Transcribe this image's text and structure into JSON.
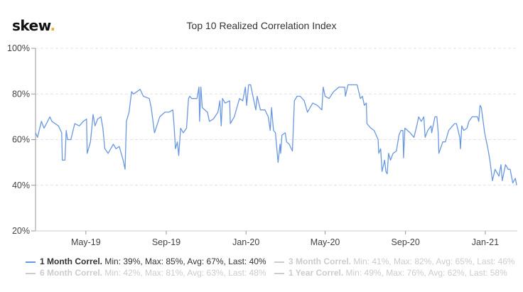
{
  "logo": {
    "text": "skew",
    "dot": "."
  },
  "chart_data": {
    "type": "line",
    "title": "Top 10 Realized Correlation Index",
    "xlabel": "",
    "ylabel": "",
    "xlim": [
      "2019-02-13",
      "2021-02-19"
    ],
    "ylim": [
      20,
      100
    ],
    "y_unit": "%",
    "y_ticks": [
      "20%",
      "40%",
      "60%",
      "80%",
      "100%"
    ],
    "y_tick_values": [
      20,
      40,
      60,
      80,
      100
    ],
    "x_ticks": [
      {
        "label": "May-19",
        "date": "2019-05-01"
      },
      {
        "label": "Sep-19",
        "date": "2019-09-01"
      },
      {
        "label": "Jan-20",
        "date": "2020-01-01"
      },
      {
        "label": "May-20",
        "date": "2020-05-01"
      },
      {
        "label": "Sep-20",
        "date": "2020-09-01"
      },
      {
        "label": "Jan-21",
        "date": "2021-01-01"
      }
    ],
    "grid": "horizontal dashed",
    "legend_placement": "bottom",
    "colors": {
      "series": "#6a98e0",
      "inactive": "#cccccc"
    },
    "series": [
      {
        "name": "1 Month Correl.",
        "visible": true,
        "stats": "Min: 39%, Max: 85%, Avg: 67%, Last: 40%",
        "points": [
          [
            "2019-02-13",
            63
          ],
          [
            "2019-02-16",
            61
          ],
          [
            "2019-02-22",
            68
          ],
          [
            "2019-02-26",
            65
          ],
          [
            "2019-03-07",
            70
          ],
          [
            "2019-03-10",
            68
          ],
          [
            "2019-03-20",
            66
          ],
          [
            "2019-03-25",
            63
          ],
          [
            "2019-03-26",
            51
          ],
          [
            "2019-03-30",
            51
          ],
          [
            "2019-04-01",
            64
          ],
          [
            "2019-04-03",
            60
          ],
          [
            "2019-04-08",
            60
          ],
          [
            "2019-04-14",
            67
          ],
          [
            "2019-04-21",
            66
          ],
          [
            "2019-04-27",
            68
          ],
          [
            "2019-05-02",
            69
          ],
          [
            "2019-05-03",
            54
          ],
          [
            "2019-05-08",
            59
          ],
          [
            "2019-05-12",
            71
          ],
          [
            "2019-05-15",
            66
          ],
          [
            "2019-05-19",
            69
          ],
          [
            "2019-05-24",
            70
          ],
          [
            "2019-05-27",
            65
          ],
          [
            "2019-05-30",
            56
          ],
          [
            "2019-06-04",
            54
          ],
          [
            "2019-06-12",
            58
          ],
          [
            "2019-06-16",
            56
          ],
          [
            "2019-06-21",
            57
          ],
          [
            "2019-06-27",
            51
          ],
          [
            "2019-06-30",
            47
          ],
          [
            "2019-07-02",
            68
          ],
          [
            "2019-07-06",
            72
          ],
          [
            "2019-07-10",
            81
          ],
          [
            "2019-07-13",
            80
          ],
          [
            "2019-07-23",
            82
          ],
          [
            "2019-07-28",
            79
          ],
          [
            "2019-08-06",
            78
          ],
          [
            "2019-08-09",
            74
          ],
          [
            "2019-08-14",
            63
          ],
          [
            "2019-08-22",
            70
          ],
          [
            "2019-08-30",
            72
          ],
          [
            "2019-09-05",
            72
          ],
          [
            "2019-09-11",
            73
          ],
          [
            "2019-09-13",
            66
          ],
          [
            "2019-09-15",
            56
          ],
          [
            "2019-09-18",
            59
          ],
          [
            "2019-09-20",
            53
          ],
          [
            "2019-09-23",
            65
          ],
          [
            "2019-09-27",
            63
          ],
          [
            "2019-10-02",
            65
          ],
          [
            "2019-10-05",
            78
          ],
          [
            "2019-10-07",
            79
          ],
          [
            "2019-10-10",
            78
          ],
          [
            "2019-10-18",
            78
          ],
          [
            "2019-10-21",
            83
          ],
          [
            "2019-10-22",
            68
          ],
          [
            "2019-10-24",
            83
          ],
          [
            "2019-10-26",
            74
          ],
          [
            "2019-11-03",
            72
          ],
          [
            "2019-11-06",
            68
          ],
          [
            "2019-11-12",
            69
          ],
          [
            "2019-11-19",
            72
          ],
          [
            "2019-11-22",
            77
          ],
          [
            "2019-11-24",
            66
          ],
          [
            "2019-11-26",
            78
          ],
          [
            "2019-11-30",
            76
          ],
          [
            "2019-12-07",
            77
          ],
          [
            "2019-12-08",
            67
          ],
          [
            "2019-12-14",
            70
          ],
          [
            "2019-12-22",
            78
          ],
          [
            "2019-12-27",
            77
          ],
          [
            "2019-12-31",
            83
          ],
          [
            "2020-01-02",
            75
          ],
          [
            "2020-01-05",
            84
          ],
          [
            "2020-01-08",
            84
          ],
          [
            "2020-01-13",
            77
          ],
          [
            "2020-01-16",
            73
          ],
          [
            "2020-01-18",
            79
          ],
          [
            "2020-01-23",
            73
          ],
          [
            "2020-01-30",
            73
          ],
          [
            "2020-02-04",
            70
          ],
          [
            "2020-02-07",
            64
          ],
          [
            "2020-02-09",
            74
          ],
          [
            "2020-02-12",
            64
          ],
          [
            "2020-02-15",
            63
          ],
          [
            "2020-02-19",
            50
          ],
          [
            "2020-02-22",
            58
          ],
          [
            "2020-02-23",
            54
          ],
          [
            "2020-02-25",
            62
          ],
          [
            "2020-03-01",
            63
          ],
          [
            "2020-03-03",
            59
          ],
          [
            "2020-03-07",
            58
          ],
          [
            "2020-03-12",
            55
          ],
          [
            "2020-03-15",
            77
          ],
          [
            "2020-03-19",
            79
          ],
          [
            "2020-03-24",
            79
          ],
          [
            "2020-03-30",
            77
          ],
          [
            "2020-04-04",
            72
          ],
          [
            "2020-04-12",
            76
          ],
          [
            "2020-04-19",
            75
          ],
          [
            "2020-04-26",
            73
          ],
          [
            "2020-04-28",
            83
          ],
          [
            "2020-05-01",
            79
          ],
          [
            "2020-05-07",
            78
          ],
          [
            "2020-05-14",
            81
          ],
          [
            "2020-05-22",
            83
          ],
          [
            "2020-05-31",
            83
          ],
          [
            "2020-06-01",
            79
          ],
          [
            "2020-06-05",
            84
          ],
          [
            "2020-06-13",
            84
          ],
          [
            "2020-06-19",
            84
          ],
          [
            "2020-06-24",
            78
          ],
          [
            "2020-06-27",
            79
          ],
          [
            "2020-06-30",
            75
          ],
          [
            "2020-07-03",
            76
          ],
          [
            "2020-07-04",
            67
          ],
          [
            "2020-07-10",
            65
          ],
          [
            "2020-07-15",
            64
          ],
          [
            "2020-07-21",
            60
          ],
          [
            "2020-07-22",
            54
          ],
          [
            "2020-07-25",
            56
          ],
          [
            "2020-07-27",
            46
          ],
          [
            "2020-07-31",
            51
          ],
          [
            "2020-08-02",
            46
          ],
          [
            "2020-08-04",
            45
          ],
          [
            "2020-08-06",
            54
          ],
          [
            "2020-08-09",
            51
          ],
          [
            "2020-08-13",
            54
          ],
          [
            "2020-08-18",
            55
          ],
          [
            "2020-08-22",
            62
          ],
          [
            "2020-08-25",
            64
          ],
          [
            "2020-08-28",
            64
          ],
          [
            "2020-08-29",
            52
          ],
          [
            "2020-08-31",
            65
          ],
          [
            "2020-09-08",
            63
          ],
          [
            "2020-09-14",
            61
          ],
          [
            "2020-09-19",
            67
          ],
          [
            "2020-09-21",
            70
          ],
          [
            "2020-09-25",
            68
          ],
          [
            "2020-09-29",
            70
          ],
          [
            "2020-10-01",
            61
          ],
          [
            "2020-10-05",
            64
          ],
          [
            "2020-10-10",
            66
          ],
          [
            "2020-10-11",
            63
          ],
          [
            "2020-10-16",
            70
          ],
          [
            "2020-10-19",
            70
          ],
          [
            "2020-10-21",
            63
          ],
          [
            "2020-10-22",
            54
          ],
          [
            "2020-10-28",
            59
          ],
          [
            "2020-11-01",
            59
          ],
          [
            "2020-11-06",
            64
          ],
          [
            "2020-11-12",
            66
          ],
          [
            "2020-11-15",
            67
          ],
          [
            "2020-11-18",
            67
          ],
          [
            "2020-11-23",
            61
          ],
          [
            "2020-11-24",
            56
          ],
          [
            "2020-11-26",
            66
          ],
          [
            "2020-11-29",
            64
          ],
          [
            "2020-12-04",
            65
          ],
          [
            "2020-12-07",
            68
          ],
          [
            "2020-12-12",
            70
          ],
          [
            "2020-12-20",
            70
          ],
          [
            "2020-12-22",
            68
          ],
          [
            "2020-12-24",
            75
          ],
          [
            "2020-12-26",
            74
          ],
          [
            "2020-12-31",
            63
          ],
          [
            "2021-01-05",
            56
          ],
          [
            "2021-01-08",
            51
          ],
          [
            "2021-01-12",
            42
          ],
          [
            "2021-01-16",
            47
          ],
          [
            "2021-01-22",
            44
          ],
          [
            "2021-01-25",
            49
          ],
          [
            "2021-01-27",
            42
          ],
          [
            "2021-02-01",
            49
          ],
          [
            "2021-02-05",
            47
          ],
          [
            "2021-02-08",
            47
          ],
          [
            "2021-02-12",
            41
          ],
          [
            "2021-02-16",
            43
          ],
          [
            "2021-02-18",
            40
          ]
        ]
      },
      {
        "name": "3 Month Correl.",
        "visible": false,
        "stats": "Min: 41%, Max: 82%, Avg: 65%, Last: 46%"
      },
      {
        "name": "6 Month Correl.",
        "visible": false,
        "stats": "Min: 42%, Max: 81%, Avg: 63%, Last: 48%"
      },
      {
        "name": "1 Year Correl.",
        "visible": false,
        "stats": "Min: 49%, Max: 76%, Avg: 62%, Last: 58%"
      }
    ]
  }
}
